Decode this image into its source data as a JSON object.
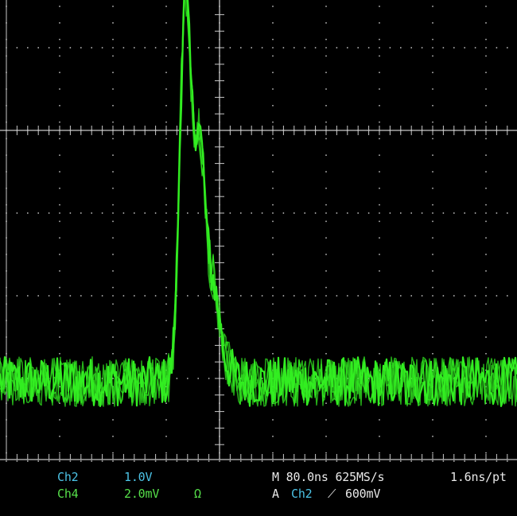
{
  "colors": {
    "background": "#000000",
    "graticule": "#c8c8c8",
    "ch4_trace": "#33ee22",
    "ch2_label": "#4cc3e6",
    "ch4_label": "#56e04a",
    "readout_text": "#e8e8e8"
  },
  "readouts": {
    "ch2": {
      "label": "Ch2",
      "scale": "1.0V"
    },
    "ch4": {
      "label": "Ch4",
      "scale": "2.0mV",
      "coupling_symbol": "Ω"
    },
    "timebase": {
      "text": "M 80.0ns 625MS/s"
    },
    "resolution": {
      "text": "1.6ns/pt"
    },
    "trigger": {
      "prefix": "A",
      "source": "Ch2",
      "slope_symbol": "⟋",
      "level": "600mV"
    }
  },
  "waveform": {
    "channel": "Ch4",
    "baseline_div": 0.0,
    "noise_div": 0.3,
    "peaks": [
      {
        "time_div": -0.65,
        "amplitude_div": 4.45,
        "width_div": 0.1
      },
      {
        "time_div": -0.38,
        "amplitude_div": 2.95,
        "width_div": 0.12
      },
      {
        "time_div": -0.1,
        "amplitude_div": 0.95,
        "width_div": 0.1
      },
      {
        "time_div": 0.1,
        "amplitude_div": 0.2,
        "width_div": 0.12
      }
    ]
  }
}
